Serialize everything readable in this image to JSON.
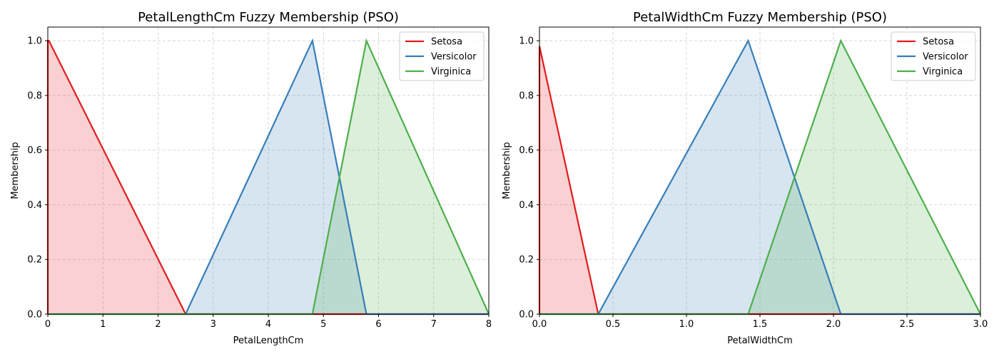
{
  "chart_data": [
    {
      "type": "area",
      "title": "PetalLengthCm Fuzzy Membership (PSO)",
      "xlabel": "PetalLengthCm",
      "ylabel": "Membership",
      "xlim": [
        0,
        8
      ],
      "ylim": [
        0,
        1.05
      ],
      "xticks": [
        0,
        1,
        2,
        3,
        4,
        5,
        6,
        7,
        8
      ],
      "xtick_labels": [
        "0",
        "1",
        "2",
        "3",
        "4",
        "5",
        "6",
        "7",
        "8"
      ],
      "yticks": [
        0,
        0.2,
        0.4,
        0.6,
        0.8,
        1.0
      ],
      "ytick_labels": [
        "0.0",
        "0.2",
        "0.4",
        "0.6",
        "0.8",
        "1.0"
      ],
      "grid": true,
      "legend_position": "top-right",
      "series": [
        {
          "name": "Setosa",
          "color": "#e41a1c",
          "x": [
            0,
            0,
            0.02,
            2.5,
            8
          ],
          "y": [
            0,
            1.0,
            1.0,
            0,
            0
          ]
        },
        {
          "name": "Versicolor",
          "color": "#377eb8",
          "x": [
            0,
            2.5,
            4.8,
            5.78,
            8
          ],
          "y": [
            0,
            0,
            1.0,
            0,
            0
          ]
        },
        {
          "name": "Virginica",
          "color": "#4daf4a",
          "x": [
            0,
            4.8,
            5.78,
            8
          ],
          "y": [
            0,
            0,
            1.0,
            0
          ]
        }
      ]
    },
    {
      "type": "area",
      "title": "PetalWidthCm Fuzzy Membership (PSO)",
      "xlabel": "PetalWidthCm",
      "ylabel": "Membership",
      "xlim": [
        0,
        3
      ],
      "ylim": [
        0,
        1.05
      ],
      "xticks": [
        0,
        0.5,
        1.0,
        1.5,
        2.0,
        2.5,
        3.0
      ],
      "xtick_labels": [
        "0.0",
        "0.5",
        "1.0",
        "1.5",
        "2.0",
        "2.5",
        "3.0"
      ],
      "yticks": [
        0,
        0.2,
        0.4,
        0.6,
        0.8,
        1.0
      ],
      "ytick_labels": [
        "0.0",
        "0.2",
        "0.4",
        "0.6",
        "0.8",
        "1.0"
      ],
      "grid": true,
      "legend_position": "top-right",
      "series": [
        {
          "name": "Setosa",
          "color": "#e41a1c",
          "x": [
            0,
            0,
            0.4,
            3
          ],
          "y": [
            0,
            0.98,
            0,
            0
          ]
        },
        {
          "name": "Versicolor",
          "color": "#377eb8",
          "x": [
            0,
            0.4,
            1.42,
            2.05,
            3
          ],
          "y": [
            0,
            0,
            1.0,
            0,
            0
          ]
        },
        {
          "name": "Virginica",
          "color": "#4daf4a",
          "x": [
            0,
            1.42,
            2.05,
            3
          ],
          "y": [
            0,
            0,
            1.0,
            0
          ]
        }
      ]
    }
  ]
}
